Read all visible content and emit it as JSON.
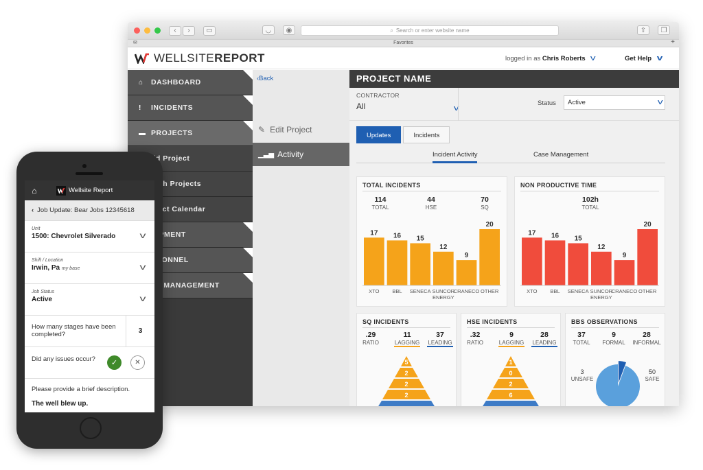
{
  "browser": {
    "address_placeholder": "Search or enter website name",
    "favorites_label": "Favorites"
  },
  "app": {
    "logo_prefix": "WELLSITE",
    "logo_suffix": "REPORT",
    "logged_in_prefix": "logged in as",
    "user_name": "Chris Roberts",
    "help_label": "Get Help"
  },
  "sidebar": {
    "items": [
      {
        "label": "DASHBOARD",
        "icon": "home-icon"
      },
      {
        "label": "INCIDENTS",
        "icon": "exclamation-icon"
      },
      {
        "label": "PROJECTS",
        "icon": "folder-icon"
      },
      {
        "label": "dd Project"
      },
      {
        "label": "arch Projects"
      },
      {
        "label": "oject Calendar"
      },
      {
        "label": "UIPMENT"
      },
      {
        "label": "RSONNEL"
      },
      {
        "label": "SE MANAGEMENT"
      }
    ]
  },
  "subnav": {
    "back_label": "Back",
    "edit_label": "Edit Project",
    "activity_label": "Activity"
  },
  "project": {
    "title": "PROJECT NAME",
    "contractor_label": "CONTRACTOR",
    "contractor_value": "All",
    "status_label": "Status",
    "status_value": "Active",
    "tabs": [
      "Updates",
      "Incidents"
    ],
    "subtabs": [
      "Incident Activity",
      "Case Management"
    ]
  },
  "cards": {
    "total_incidents": {
      "title": "TOTAL INCIDENTS",
      "stats": [
        {
          "value": "114",
          "label": "TOTAL"
        },
        {
          "value": "44",
          "label": "HSE"
        },
        {
          "value": "70",
          "label": "SQ"
        }
      ]
    },
    "npt": {
      "title": "NON PRODUCTIVE TIME",
      "stats": [
        {
          "value": "102h",
          "label": "TOTAL"
        }
      ]
    },
    "sq": {
      "title": "SQ INCIDENTS",
      "stats": [
        {
          "value": ".29",
          "label": "RATIO"
        },
        {
          "value": "11",
          "label": "LAGGING"
        },
        {
          "value": "37",
          "label": "LEADING"
        }
      ],
      "pyramid": [
        "5",
        "2",
        "2",
        "2"
      ]
    },
    "hse": {
      "title": "HSE INCIDENTS",
      "stats": [
        {
          "value": ".32",
          "label": "RATIO"
        },
        {
          "value": "9",
          "label": "LAGGING"
        },
        {
          "value": "28",
          "label": "LEADING"
        }
      ],
      "pyramid": [
        "1",
        "0",
        "2",
        "6"
      ]
    },
    "bbs": {
      "title": "BBS OBSERVATIONS",
      "stats": [
        {
          "value": "37",
          "label": "TOTAL"
        },
        {
          "value": "9",
          "label": "FORMAL"
        },
        {
          "value": "28",
          "label": "INFORMAL"
        }
      ],
      "unsafe_value": "3",
      "unsafe_label": "UNSAFE",
      "safe_value": "50",
      "safe_label": "SAFE"
    }
  },
  "chart_data": [
    {
      "type": "bar",
      "categories": [
        "XTO",
        "BBL",
        "SENECA",
        "SUNCOR ENERGY",
        "CRANECO",
        "OTHER"
      ],
      "values": [
        17,
        16,
        15,
        12,
        9,
        20
      ],
      "color": "#f5a31a",
      "ylim": [
        0,
        20
      ]
    },
    {
      "type": "bar",
      "categories": [
        "XTO",
        "BBL",
        "SENECA",
        "SUNCOR ENERGY",
        "CRANECO",
        "OTHER"
      ],
      "values": [
        17,
        16,
        15,
        12,
        9,
        20
      ],
      "color": "#f04c3c",
      "ylim": [
        0,
        20
      ]
    },
    {
      "type": "pie",
      "categories": [
        "UNSAFE",
        "SAFE"
      ],
      "values": [
        3,
        50
      ],
      "colors": [
        "#1f5fb2",
        "#5aa0dc"
      ]
    }
  ],
  "phone": {
    "app_title": "Wellsite Report",
    "subheader": "Job Update: Bear Jobs 12345618",
    "unit_label": "Unit",
    "unit_value": "1500: Chevrolet Silverado",
    "shift_label": "Shift / Location",
    "shift_value": "Irwin, Pa",
    "shift_note": "my base",
    "job_status_label": "Job Status",
    "job_status_value": "Active",
    "stages_question": "How many stages have been completed?",
    "stages_answer": "3",
    "issues_question": "Did any issues occur?",
    "description_prompt": "Please provide a brief description.",
    "description_value": "The well blew up."
  },
  "colors": {
    "accent": "#1f5fb2",
    "orange": "#f5a31a",
    "red": "#f04c3c",
    "sidebar": "#555555",
    "green": "#3f8a2a"
  }
}
